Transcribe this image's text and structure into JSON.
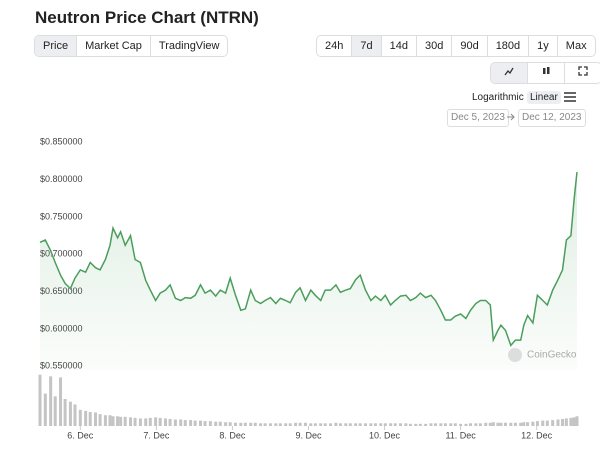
{
  "header": {
    "title": "Neutron Price Chart (NTRN)"
  },
  "tabs": {
    "items": [
      "Price",
      "Market Cap",
      "TradingView"
    ],
    "active": 0
  },
  "ranges": {
    "items": [
      "24h",
      "7d",
      "14d",
      "30d",
      "90d",
      "180d",
      "1y",
      "Max"
    ],
    "active": 1
  },
  "scale": {
    "items": [
      "Logarithmic",
      "Linear"
    ],
    "active": 1
  },
  "date_range": {
    "from": "Dec 5, 2023",
    "to": "Dec 12, 2023"
  },
  "watermark": "CoinGecko",
  "chart_data": {
    "type": "line",
    "color": "#4a9e5c",
    "volume_color": "#c4c4c4",
    "x": [
      5.47,
      5.54,
      5.61,
      5.67,
      5.74,
      5.8,
      5.87,
      5.93,
      6.0,
      6.07,
      6.13,
      6.2,
      6.26,
      6.33,
      6.39,
      6.43,
      6.49,
      6.53,
      6.59,
      6.66,
      6.72,
      6.79,
      6.86,
      6.92,
      6.99,
      7.05,
      7.12,
      7.18,
      7.25,
      7.32,
      7.38,
      7.45,
      7.51,
      7.58,
      7.64,
      7.71,
      7.78,
      7.84,
      7.91,
      7.97,
      8.04,
      8.11,
      8.17,
      8.24,
      8.3,
      8.37,
      8.43,
      8.5,
      8.57,
      8.63,
      8.7,
      8.76,
      8.83,
      8.89,
      8.96,
      9.03,
      9.09,
      9.16,
      9.22,
      9.29,
      9.36,
      9.42,
      9.49,
      9.55,
      9.62,
      9.68,
      9.75,
      9.82,
      9.88,
      9.95,
      10.01,
      10.08,
      10.14,
      10.21,
      10.28,
      10.34,
      10.41,
      10.47,
      10.54,
      10.61,
      10.67,
      10.74,
      10.8,
      10.87,
      10.93,
      11.0,
      11.07,
      11.13,
      11.2,
      11.26,
      11.33,
      11.39,
      11.43,
      11.49,
      11.53,
      11.59,
      11.66,
      11.72,
      11.79,
      11.83,
      11.88,
      11.95,
      12.01,
      12.08,
      12.14,
      12.21,
      12.28,
      12.34,
      12.39,
      12.45,
      12.49,
      12.53
    ],
    "values": [
      0.716,
      0.719,
      0.705,
      0.689,
      0.672,
      0.661,
      0.654,
      0.668,
      0.679,
      0.676,
      0.689,
      0.682,
      0.679,
      0.693,
      0.712,
      0.735,
      0.722,
      0.73,
      0.712,
      0.725,
      0.693,
      0.689,
      0.665,
      0.652,
      0.638,
      0.648,
      0.652,
      0.659,
      0.641,
      0.638,
      0.642,
      0.641,
      0.645,
      0.659,
      0.648,
      0.652,
      0.644,
      0.652,
      0.648,
      0.668,
      0.645,
      0.625,
      0.627,
      0.652,
      0.638,
      0.634,
      0.638,
      0.642,
      0.634,
      0.641,
      0.638,
      0.635,
      0.649,
      0.655,
      0.638,
      0.652,
      0.645,
      0.638,
      0.652,
      0.652,
      0.659,
      0.649,
      0.652,
      0.654,
      0.666,
      0.672,
      0.652,
      0.638,
      0.644,
      0.638,
      0.645,
      0.632,
      0.638,
      0.644,
      0.645,
      0.638,
      0.642,
      0.648,
      0.642,
      0.645,
      0.638,
      0.625,
      0.612,
      0.612,
      0.617,
      0.62,
      0.614,
      0.625,
      0.634,
      0.638,
      0.638,
      0.632,
      0.585,
      0.598,
      0.605,
      0.598,
      0.578,
      0.585,
      0.585,
      0.605,
      0.618,
      0.608,
      0.645,
      0.638,
      0.632,
      0.652,
      0.666,
      0.679,
      0.719,
      0.725,
      0.772,
      0.81
    ],
    "volume": [
      95,
      60,
      92,
      55,
      90,
      50,
      45,
      40,
      30,
      28,
      26,
      25,
      22,
      20,
      20,
      18,
      18,
      17,
      17,
      16,
      15,
      14,
      14,
      15,
      16,
      15,
      14,
      13,
      12,
      12,
      11,
      11,
      10,
      10,
      9,
      9,
      8,
      8,
      7,
      7,
      6,
      6,
      6,
      6,
      6,
      5,
      5,
      5,
      5,
      5,
      5,
      5,
      6,
      6,
      6,
      5,
      5,
      5,
      5,
      5,
      6,
      5,
      5,
      5,
      5,
      5,
      5,
      5,
      5,
      5,
      5,
      5,
      5,
      5,
      5,
      4,
      4,
      4,
      4,
      5,
      5,
      5,
      5,
      5,
      5,
      4,
      4,
      5,
      5,
      5,
      6,
      6,
      7,
      6,
      6,
      6,
      6,
      6,
      6,
      7,
      7,
      8,
      9,
      10,
      10,
      11,
      12,
      13,
      14,
      15,
      16,
      18
    ],
    "volume_lim": [
      0,
      100
    ],
    "xlim": [
      5.47,
      12.53
    ],
    "ylim": [
      0.545,
      0.865
    ],
    "xticks": [
      {
        "value": 6,
        "label": "6. Dec"
      },
      {
        "value": 7,
        "label": "7. Dec"
      },
      {
        "value": 8,
        "label": "8. Dec"
      },
      {
        "value": 9,
        "label": "9. Dec"
      },
      {
        "value": 10,
        "label": "10. Dec"
      },
      {
        "value": 11,
        "label": "11. Dec"
      },
      {
        "value": 12,
        "label": "12. Dec"
      }
    ],
    "yticks": [
      {
        "value": 0.55,
        "label": "$0.550000"
      },
      {
        "value": 0.6,
        "label": "$0.600000"
      },
      {
        "value": 0.65,
        "label": "$0.650000"
      },
      {
        "value": 0.7,
        "label": "$0.700000"
      },
      {
        "value": 0.75,
        "label": "$0.750000"
      },
      {
        "value": 0.8,
        "label": "$0.800000"
      },
      {
        "value": 0.85,
        "label": "$0.850000"
      }
    ]
  }
}
